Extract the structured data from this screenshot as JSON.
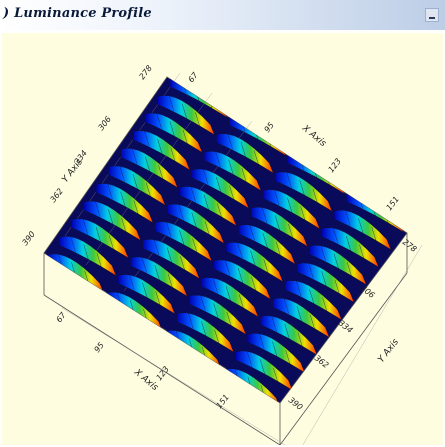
{
  "window": {
    "title": ") Luminance Profile"
  },
  "colors": {
    "panel_background": "#fffde0",
    "titlebar_start": "#ffffff",
    "titlebar_end": "#bccde6",
    "surface_low": "#0000b4",
    "surface_high": "#ff2a00"
  },
  "chart_data": {
    "type": "surface",
    "title": "Luminance Profile",
    "xlabel": "X Axis",
    "ylabel": "Y Axis",
    "x_ticks": [
      "67",
      "95",
      "123",
      "151"
    ],
    "y_ticks": [
      "278",
      "306",
      "334",
      "362",
      "390"
    ],
    "colormap": [
      "blue",
      "cyan",
      "green",
      "yellow",
      "red"
    ],
    "grid": true,
    "legend": "none"
  }
}
